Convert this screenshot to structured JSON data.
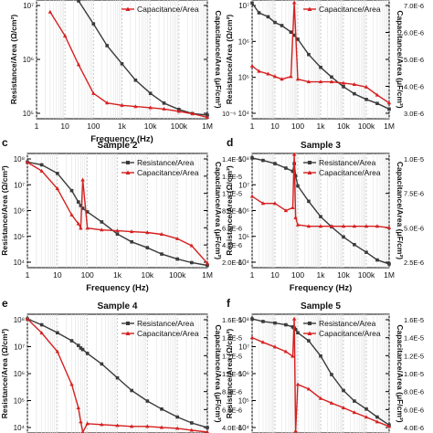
{
  "figure": {
    "colors": {
      "resistance": "#3a3a3a",
      "capacitance": "#d62020",
      "grid": "#bdbdbd"
    },
    "panels": [
      {
        "panel_letter": "",
        "title": "",
        "xlabel": "Frequency (Hz)",
        "ylabel_left": "Resistance/Area (Ω/cm²)",
        "ylabel_right": "Capacitance/Area (μF/cm²)",
        "left_ticks": [
          "10⁷",
          "10⁶",
          "10⁵"
        ],
        "right_ticks": [
          "",
          "",
          "10⁻⁶"
        ],
        "x_ticks": [
          "1",
          "10",
          "100",
          "1k",
          "10k",
          "100k",
          "1M"
        ],
        "legend": [
          "Capacitance/Area"
        ]
      },
      {
        "panel_letter": "",
        "title": "",
        "xlabel": "",
        "ylabel_left": "Resistance/Area (Ω/cm²)",
        "ylabel_right": "Capacitance/Area (μF/cm²)",
        "left_ticks": [
          "10⁷",
          "10⁶",
          "10⁵",
          "10⁴"
        ],
        "right_ticks": [
          "7.0E-6",
          "6.0E-6",
          "5.0E-6",
          "4.0E-6",
          "3.0E-6"
        ],
        "x_ticks": [
          "1",
          "10",
          "100",
          "1k",
          "10k",
          "100k",
          "1M"
        ],
        "legend": [
          "Capacitance/Area"
        ]
      },
      {
        "panel_letter": "c",
        "title": "Sample 2",
        "xlabel": "Frequency (Hz)",
        "ylabel_left": "Resistance/Area (Ω/cm²)",
        "ylabel_right": "Capacitance/Area (μF/cm²)",
        "left_ticks": [
          "10⁸",
          "10⁷",
          "10⁶",
          "10⁵",
          "10⁴"
        ],
        "right_ticks": [
          "1.4E-5",
          "1.2E-5",
          "1.0E-5",
          "8.0E-6",
          "6.0E-6",
          "4.0E-6",
          "2.0E-6"
        ],
        "x_ticks": [
          "1",
          "10",
          "100",
          "1k",
          "10k",
          "100k",
          "1M"
        ],
        "legend": [
          "Resistance/Area",
          "Capacitance/Area"
        ]
      },
      {
        "panel_letter": "d",
        "title": "Sample 3",
        "xlabel": "Frequency (Hz)",
        "ylabel_left": "Resistance/Area (Ω/cm²)",
        "ylabel_right": "Capacitance/Area (μF/cm²)",
        "left_ticks": [
          "10⁸",
          "10⁷",
          "10⁶",
          "10⁵",
          "10⁴"
        ],
        "right_ticks": [
          "1.0E-5",
          "7.5E-6",
          "5.0E-6",
          "2.5E-6"
        ],
        "x_ticks": [
          "1",
          "10",
          "100",
          "1k",
          "10k",
          "100k",
          "1M"
        ],
        "legend": [
          "Resistance/Area",
          "Capacitance/Area"
        ]
      },
      {
        "panel_letter": "e",
        "title": "Sample 4",
        "xlabel": "",
        "ylabel_left": "Resistance/Area (Ω/cm²)",
        "ylabel_right": "Capacitance/Area (μF/cm²)",
        "left_ticks": [
          "10⁸",
          "10⁷",
          "10⁶",
          "10⁵",
          "10⁴"
        ],
        "right_ticks": [
          "1.6E-5",
          "1.4E-5",
          "1.2E-5",
          "1.0E-5",
          "8.0E-6",
          "6.0E-6",
          "4.0E-6"
        ],
        "x_ticks": [],
        "legend": [
          "Resistance/Area",
          "Capacitance/Area"
        ]
      },
      {
        "panel_letter": "f",
        "title": "Sample 5",
        "xlabel": "",
        "ylabel_left": "Resistance/Area (Ω/cm²)",
        "ylabel_right": "Capacitance/Area (μF/cm²)",
        "left_ticks": [
          "10⁸",
          "10⁷",
          "10⁶",
          "10⁵",
          "10⁴"
        ],
        "right_ticks": [
          "1.6E-5",
          "1.4E-5",
          "1.2E-5",
          "1.0E-5",
          "8.0E-6",
          "6.0E-6",
          "4.0E-6"
        ],
        "x_ticks": [],
        "legend": [
          "Resistance/Area",
          "Capacitance/Area"
        ]
      }
    ]
  },
  "chart_data": [
    {
      "type": "line",
      "x_scale": "log",
      "x": [
        1,
        3,
        10,
        30,
        100,
        300,
        1000,
        3000,
        10000,
        30000,
        100000,
        300000,
        1000000
      ],
      "series": [
        {
          "name": "Resistance/Area",
          "axis": "left",
          "values": [
            null,
            null,
            null,
            20000000,
            6000000,
            2000000,
            800000,
            350000,
            180000,
            110000,
            80000,
            65000,
            60000
          ]
        },
        {
          "name": "Capacitance/Area",
          "axis": "right",
          "values": [
            null,
            5.0,
            4.0,
            2.8,
            1.6,
            1.2,
            1.1,
            1.05,
            1.0,
            0.95,
            0.85,
            0.75,
            0.6
          ]
        }
      ],
      "xlim": [
        1,
        1000000
      ],
      "ylim_left": [
        50000,
        20000000
      ]
    },
    {
      "type": "line",
      "x_scale": "log",
      "x": [
        1,
        2,
        5,
        10,
        20,
        50,
        70,
        100,
        300,
        1000,
        3000,
        10000,
        30000,
        100000,
        300000,
        1000000
      ],
      "series": [
        {
          "name": "Resistance/Area",
          "axis": "left",
          "values": [
            40000000,
            20000000,
            15000000,
            10000000,
            8000000,
            5000000,
            4000000,
            3000000,
            1000000,
            400000,
            200000,
            100000,
            60000,
            40000,
            30000,
            20000
          ]
        },
        {
          "name": "Capacitance/Area",
          "axis": "right",
          "values": [
            5e-06,
            4.8e-06,
            4.7e-06,
            4.6e-06,
            4.5e-06,
            4.6e-06,
            7.4e-06,
            4.5e-06,
            4.4e-06,
            4.4e-06,
            4.4e-06,
            4.35e-06,
            4.3e-06,
            4.2e-06,
            3.9e-06,
            3.6e-06
          ]
        }
      ],
      "xlim": [
        1,
        1000000
      ],
      "ylim_left": [
        10000,
        50000000
      ],
      "ylim_right": [
        3e-06,
        7.5e-06
      ]
    },
    {
      "type": "line",
      "x_scale": "log",
      "x": [
        1,
        3,
        10,
        30,
        50,
        60,
        70,
        100,
        300,
        1000,
        3000,
        10000,
        30000,
        100000,
        300000,
        1000000
      ],
      "series": [
        {
          "name": "Resistance/Area",
          "axis": "left",
          "values": [
            50000000,
            40000000,
            20000000,
            5000000,
            2000000,
            1500000,
            1200000,
            900000,
            400000,
            150000,
            80000,
            50000,
            30000,
            20000,
            15000,
            12000
          ]
        },
        {
          "name": "Capacitance/Area",
          "axis": "right",
          "values": [
            1.4e-05,
            1.3e-05,
            1.1e-05,
            8e-06,
            7e-06,
            6.5e-06,
            1.2e-05,
            6.5e-06,
            6.3e-06,
            6.2e-06,
            6.1e-06,
            6e-06,
            5.8e-06,
            5.3e-06,
            4.5e-06,
            2.5e-06
          ]
        }
      ],
      "xlim": [
        1,
        1000000
      ],
      "ylim_left": [
        10000,
        100000000
      ],
      "ylim_right": [
        2e-06,
        1.5e-05
      ]
    },
    {
      "type": "line",
      "x_scale": "log",
      "x": [
        1,
        3,
        10,
        30,
        60,
        70,
        80,
        100,
        300,
        1000,
        3000,
        10000,
        30000,
        100000,
        300000,
        1000000
      ],
      "series": [
        {
          "name": "Resistance/Area",
          "axis": "left",
          "values": [
            100000000,
            80000000,
            60000000,
            40000000,
            30000000,
            60000000,
            20000000,
            8000000,
            2000000,
            500000,
            200000,
            80000,
            40000,
            20000,
            10000,
            7000
          ]
        },
        {
          "name": "Capacitance/Area",
          "axis": "right",
          "values": [
            7e-06,
            6.5e-06,
            6.5e-06,
            6e-06,
            6.2e-06,
            1e-05,
            5.5e-06,
            5e-06,
            4.9e-06,
            4.9e-06,
            4.9e-06,
            4.9e-06,
            4.9e-06,
            4.9e-06,
            4.9e-06,
            4.8e-06
          ]
        }
      ],
      "xlim": [
        1,
        1000000
      ],
      "ylim_left": [
        5000,
        150000000
      ],
      "ylim_right": [
        2e-06,
        1e-05
      ]
    },
    {
      "type": "line",
      "x_scale": "log",
      "x": [
        1,
        3,
        10,
        30,
        50,
        60,
        70,
        100,
        300,
        1000,
        3000,
        10000,
        30000,
        100000,
        300000,
        1000000
      ],
      "series": [
        {
          "name": "Resistance/Area",
          "axis": "left",
          "values": [
            100000000,
            60000000,
            30000000,
            15000000,
            10000000,
            8000000,
            7000000,
            5000000,
            2000000,
            600000,
            200000,
            80000,
            40000,
            20000,
            12000,
            8000
          ]
        },
        {
          "name": "Capacitance/Area",
          "axis": "right",
          "values": [
            1.6e-05,
            1.45e-05,
            1.25e-05,
            9e-06,
            6.5e-06,
            5e-06,
            3.8e-06,
            4.8e-06,
            4.7e-06,
            4.6e-06,
            4.5e-06,
            4.5e-06,
            4.4e-06,
            4.3e-06,
            4.1e-06,
            3.9e-06
          ]
        }
      ],
      "xlim": [
        1,
        1000000
      ],
      "ylim_left": [
        5000,
        150000000
      ],
      "ylim_right": [
        3.8e-06,
        1.65e-05
      ]
    },
    {
      "type": "line",
      "x_scale": "log",
      "x": [
        1,
        3,
        10,
        30,
        60,
        70,
        80,
        100,
        300,
        1000,
        3000,
        10000,
        30000,
        100000,
        300000,
        1000000
      ],
      "series": [
        {
          "name": "Resistance/Area",
          "axis": "left",
          "values": [
            100000000,
            80000000,
            70000000,
            60000000,
            50000000,
            45000000,
            40000000,
            30000000,
            15000000,
            4000000,
            800000,
            200000,
            80000,
            40000,
            20000,
            10000
          ]
        },
        {
          "name": "Capacitance/Area",
          "axis": "right",
          "values": [
            1.4e-05,
            1.35e-05,
            1.3e-05,
            1.25e-05,
            1.2e-05,
            1.6e-05,
            4e-06,
            9e-06,
            8.5e-06,
            7.5e-06,
            7e-06,
            6.5e-06,
            6e-06,
            5.5e-06,
            5e-06,
            4.5e-06
          ]
        }
      ],
      "xlim": [
        1,
        1000000
      ],
      "ylim_left": [
        5000,
        150000000
      ],
      "ylim_right": [
        3.8e-06,
        1.65e-05
      ]
    }
  ]
}
